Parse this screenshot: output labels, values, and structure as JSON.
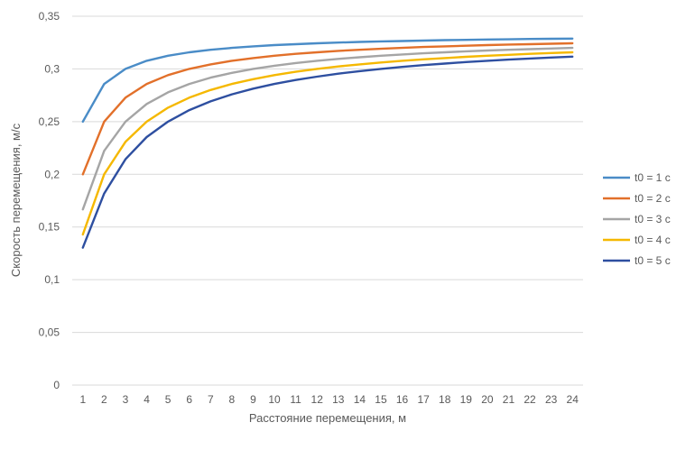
{
  "chart_data": {
    "type": "line",
    "xlabel": "Расстояние перемещения, м",
    "ylabel": "Скорость перемещения, м/с",
    "ylim": [
      0,
      0.35
    ],
    "yticks": [
      "0",
      "0,05",
      "0,1",
      "0,15",
      "0,2",
      "0,25",
      "0,3",
      "0,35"
    ],
    "ytick_values": [
      0,
      0.05,
      0.1,
      0.15,
      0.2,
      0.25,
      0.3,
      0.35
    ],
    "x": [
      1,
      2,
      3,
      4,
      5,
      6,
      7,
      8,
      9,
      10,
      11,
      12,
      13,
      14,
      15,
      16,
      17,
      18,
      19,
      20,
      21,
      22,
      23,
      24
    ],
    "grid": true,
    "legend_position": "right",
    "series": [
      {
        "name": "t0 = 1 c",
        "color": "#4a8cc7",
        "values": [
          0.25,
          0.2857,
          0.3,
          0.3077,
          0.3125,
          0.3158,
          0.3182,
          0.32,
          0.3214,
          0.3226,
          0.3235,
          0.3243,
          0.325,
          0.3256,
          0.3261,
          0.3265,
          0.3269,
          0.3273,
          0.3276,
          0.3279,
          0.3281,
          0.3284,
          0.3286,
          0.3288
        ]
      },
      {
        "name": "t0 = 2 c",
        "color": "#e2702a",
        "values": [
          0.2,
          0.25,
          0.2727,
          0.2857,
          0.2941,
          0.3,
          0.3043,
          0.3077,
          0.3103,
          0.3125,
          0.3143,
          0.3158,
          0.3171,
          0.3182,
          0.3191,
          0.32,
          0.3208,
          0.3214,
          0.322,
          0.3226,
          0.3231,
          0.3235,
          0.3239,
          0.3243
        ]
      },
      {
        "name": "t0 = 3 c",
        "color": "#a5a5a5",
        "values": [
          0.1667,
          0.2222,
          0.25,
          0.2667,
          0.2778,
          0.2857,
          0.2917,
          0.2963,
          0.3,
          0.303,
          0.3056,
          0.3077,
          0.3095,
          0.3111,
          0.3125,
          0.3137,
          0.3148,
          0.3158,
          0.3167,
          0.3175,
          0.3182,
          0.3188,
          0.3194,
          0.32
        ]
      },
      {
        "name": "t0 = 4 c",
        "color": "#f5b800",
        "values": [
          0.1429,
          0.2,
          0.2308,
          0.25,
          0.2632,
          0.2727,
          0.28,
          0.2857,
          0.2903,
          0.2941,
          0.2973,
          0.3,
          0.3023,
          0.3043,
          0.3061,
          0.3077,
          0.3091,
          0.3103,
          0.3115,
          0.3125,
          0.3134,
          0.3143,
          0.3151,
          0.3158
        ]
      },
      {
        "name": "t0 = 5 c",
        "color": "#2e4fa0",
        "values": [
          0.1304,
          0.1818,
          0.2143,
          0.2353,
          0.25,
          0.2609,
          0.2692,
          0.2759,
          0.2813,
          0.2857,
          0.2895,
          0.2927,
          0.2955,
          0.2979,
          0.3,
          0.3019,
          0.3036,
          0.3051,
          0.3065,
          0.3077,
          0.3088,
          0.3099,
          0.3108,
          0.3117
        ]
      }
    ]
  }
}
